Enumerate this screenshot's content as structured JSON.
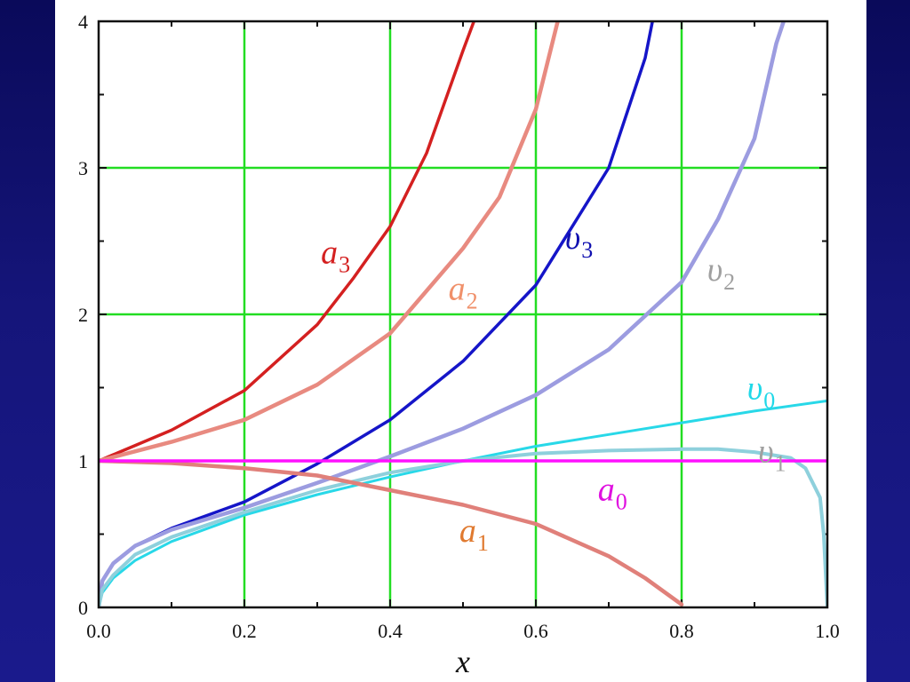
{
  "chart_data": {
    "type": "line",
    "xlabel": "x",
    "ylabel": "",
    "xlim": [
      0,
      1
    ],
    "ylim": [
      0,
      4
    ],
    "grid": true,
    "x_ticks": [
      "0.0",
      "0.2",
      "0.4",
      "0.6",
      "0.8",
      "1.0"
    ],
    "y_ticks": [
      "0",
      "1",
      "2",
      "3",
      "4"
    ],
    "series": [
      {
        "name": "a3",
        "label_main": "a",
        "label_sub": "3",
        "color": "#d42020",
        "label_color": "#d42020",
        "points": [
          [
            0,
            1
          ],
          [
            0.1,
            1.21
          ],
          [
            0.2,
            1.48
          ],
          [
            0.3,
            1.93
          ],
          [
            0.35,
            2.25
          ],
          [
            0.4,
            2.6
          ],
          [
            0.45,
            3.1
          ],
          [
            0.5,
            3.8
          ],
          [
            0.515,
            4.0
          ]
        ]
      },
      {
        "name": "a2",
        "label_main": "a",
        "label_sub": "2",
        "color": "#e88a80",
        "label_color": "#f0906a",
        "points": [
          [
            0,
            1
          ],
          [
            0.1,
            1.13
          ],
          [
            0.2,
            1.28
          ],
          [
            0.3,
            1.52
          ],
          [
            0.4,
            1.87
          ],
          [
            0.5,
            2.45
          ],
          [
            0.55,
            2.8
          ],
          [
            0.6,
            3.4
          ],
          [
            0.63,
            4.0
          ]
        ]
      },
      {
        "name": "v3",
        "label_main": "υ",
        "label_sub": "3",
        "color": "#1515c8",
        "label_color": "#1010b0",
        "points": [
          [
            0,
            0
          ],
          [
            0.005,
            0.18
          ],
          [
            0.02,
            0.3
          ],
          [
            0.05,
            0.42
          ],
          [
            0.1,
            0.54
          ],
          [
            0.2,
            0.72
          ],
          [
            0.3,
            0.98
          ],
          [
            0.4,
            1.28
          ],
          [
            0.5,
            1.68
          ],
          [
            0.6,
            2.2
          ],
          [
            0.7,
            3.0
          ],
          [
            0.75,
            3.75
          ],
          [
            0.76,
            4.0
          ]
        ]
      },
      {
        "name": "v2",
        "label_main": "υ",
        "label_sub": "2",
        "color": "#9c9ce0",
        "label_color": "#a0a0a0",
        "points": [
          [
            0,
            0
          ],
          [
            0.005,
            0.18
          ],
          [
            0.02,
            0.3
          ],
          [
            0.05,
            0.42
          ],
          [
            0.1,
            0.53
          ],
          [
            0.2,
            0.68
          ],
          [
            0.3,
            0.85
          ],
          [
            0.4,
            1.03
          ],
          [
            0.5,
            1.22
          ],
          [
            0.6,
            1.45
          ],
          [
            0.7,
            1.76
          ],
          [
            0.8,
            2.22
          ],
          [
            0.85,
            2.65
          ],
          [
            0.9,
            3.2
          ],
          [
            0.93,
            3.85
          ],
          [
            0.94,
            4.0
          ]
        ]
      },
      {
        "name": "v0",
        "label_main": "υ",
        "label_sub": "0",
        "color": "#28d8e8",
        "label_color": "#20d8e8",
        "points": [
          [
            0,
            0
          ],
          [
            0.005,
            0.1
          ],
          [
            0.02,
            0.2
          ],
          [
            0.05,
            0.32
          ],
          [
            0.1,
            0.45
          ],
          [
            0.2,
            0.63
          ],
          [
            0.3,
            0.77
          ],
          [
            0.4,
            0.89
          ],
          [
            0.5,
            1.0
          ],
          [
            0.6,
            1.1
          ],
          [
            0.7,
            1.18
          ],
          [
            0.8,
            1.26
          ],
          [
            0.9,
            1.34
          ],
          [
            1.0,
            1.41
          ]
        ]
      },
      {
        "name": "v1",
        "label_main": "υ",
        "label_sub": "1",
        "color": "#8ed0dc",
        "label_color": "#a0a0a0",
        "points": [
          [
            0,
            0
          ],
          [
            0.005,
            0.12
          ],
          [
            0.02,
            0.22
          ],
          [
            0.05,
            0.36
          ],
          [
            0.1,
            0.48
          ],
          [
            0.2,
            0.65
          ],
          [
            0.3,
            0.8
          ],
          [
            0.4,
            0.92
          ],
          [
            0.5,
            1.0
          ],
          [
            0.6,
            1.05
          ],
          [
            0.7,
            1.07
          ],
          [
            0.8,
            1.08
          ],
          [
            0.85,
            1.08
          ],
          [
            0.9,
            1.06
          ],
          [
            0.95,
            1.02
          ],
          [
            0.97,
            0.95
          ],
          [
            0.99,
            0.75
          ],
          [
            0.995,
            0.5
          ],
          [
            1.0,
            0.0
          ]
        ]
      },
      {
        "name": "a1",
        "label_main": "a",
        "label_sub": "1",
        "color": "#e0807a",
        "label_color": "#e07a30",
        "points": [
          [
            0,
            1
          ],
          [
            0.1,
            0.985
          ],
          [
            0.2,
            0.95
          ],
          [
            0.3,
            0.9
          ],
          [
            0.4,
            0.8
          ],
          [
            0.5,
            0.7
          ],
          [
            0.6,
            0.57
          ],
          [
            0.7,
            0.35
          ],
          [
            0.75,
            0.2
          ],
          [
            0.8,
            0.02
          ]
        ]
      },
      {
        "name": "a0",
        "label_main": "a",
        "label_sub": "0",
        "color": "#ff10ff",
        "label_color": "#e010e0",
        "points": [
          [
            0,
            1
          ],
          [
            1,
            1
          ]
        ]
      }
    ]
  }
}
